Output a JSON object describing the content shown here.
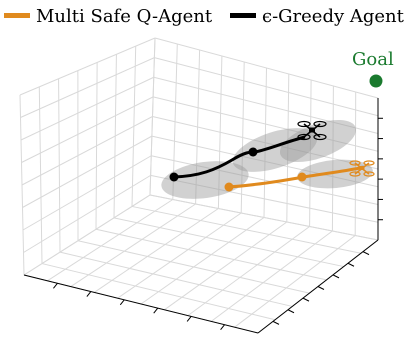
{
  "chart_data": {
    "type": "line3d",
    "title": "",
    "legend": {
      "placement": "top",
      "entries": [
        {
          "label": "Multi Safe Q-Agent",
          "color": "#e08a1e"
        },
        {
          "label": "ϵ-Greedy Agent",
          "color": "#000000"
        }
      ]
    },
    "grid": true,
    "series": [
      {
        "name": "Multi Safe Q-Agent",
        "color": "#e08a1e",
        "points": [
          [
            0.8,
            0.0
          ],
          [
            1.0,
            0.5
          ],
          [
            1.3,
            0.5
          ],
          [
            1.5,
            0.6
          ],
          [
            2.0,
            0.7
          ],
          [
            2.4,
            0.9
          ],
          [
            3.0,
            0.95
          ]
        ],
        "markers": [
          [
            1.0,
            0.5
          ],
          [
            2.0,
            0.7
          ]
        ],
        "safety_regions": [
          [
            1.0,
            0.5
          ],
          [
            2.0,
            0.7
          ],
          [
            3.0,
            0.95
          ]
        ]
      },
      {
        "name": "ϵ-Greedy Agent",
        "color": "#000000",
        "points": [
          [
            0.0,
            1.2
          ],
          [
            0.4,
            1.25
          ],
          [
            0.8,
            1.3
          ],
          [
            1.2,
            1.9
          ],
          [
            1.6,
            2.0
          ],
          [
            2.0,
            2.1
          ],
          [
            2.5,
            2.5
          ]
        ],
        "markers": [
          [
            0.2,
            1.2
          ],
          [
            1.4,
            2.0
          ]
        ],
        "safety_regions": [
          [
            0.2,
            1.2
          ],
          [
            1.4,
            2.0
          ],
          [
            2.5,
            2.5
          ]
        ]
      }
    ],
    "goal": {
      "label": "Goal",
      "color": "#1a7a2e"
    }
  }
}
